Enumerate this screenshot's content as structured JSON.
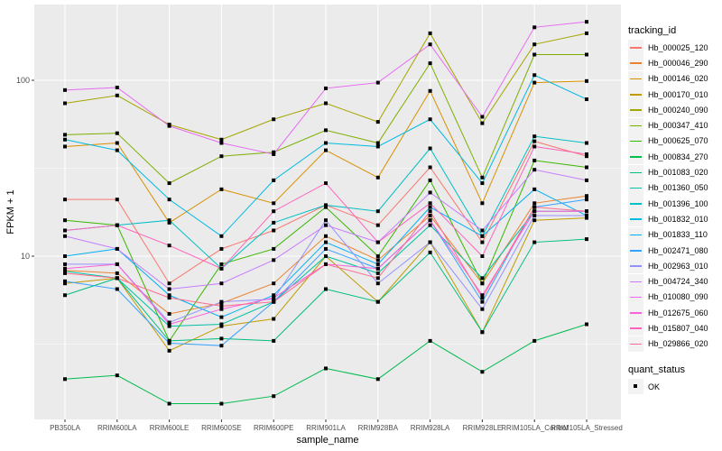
{
  "chart_data": {
    "type": "line",
    "xlabel": "sample_name",
    "ylabel": "FPKM + 1",
    "y_scale": "log10",
    "ylim": [
      1.18,
      270
    ],
    "y_ticks": [
      "10",
      "100"
    ],
    "y_tick_values": [
      10,
      100
    ],
    "grid": true,
    "legend_position": "right",
    "categories": [
      "PB350LA",
      "RRIM600LA",
      "RRIM600LE",
      "RRIM600SE",
      "RRIM600PE",
      "RRIM901LA",
      "RRIM928BA",
      "RRIM928LA",
      "RRIM928LE",
      "RRIM105LA_Control",
      "RRIM105LA_Stressed"
    ],
    "legend_title": "tracking_id",
    "series": [
      {
        "name": "Hb_000025_120",
        "color": "#F8766D",
        "values": [
          21,
          21,
          7,
          11,
          14,
          19.5,
          15,
          32,
          12,
          45,
          37
        ]
      },
      {
        "name": "Hb_000046_290",
        "color": "#EA8331",
        "values": [
          8.3,
          8,
          4.7,
          5.4,
          7,
          13,
          9.5,
          17,
          7,
          20,
          22
        ]
      },
      {
        "name": "Hb_000146_020",
        "color": "#D89000",
        "values": [
          42,
          44,
          15.5,
          24,
          20,
          40,
          28,
          87,
          20,
          97,
          99
        ]
      },
      {
        "name": "Hb_000170_010",
        "color": "#C09B00",
        "values": [
          7,
          7.5,
          2.9,
          4,
          4.4,
          10,
          5.5,
          12,
          3.7,
          16,
          16.5
        ]
      },
      {
        "name": "Hb_000240_090",
        "color": "#A3A500",
        "values": [
          74,
          82,
          56,
          46,
          60,
          74,
          58,
          185,
          57,
          160,
          185
        ]
      },
      {
        "name": "Hb_000347_410",
        "color": "#7CAE00",
        "values": [
          49,
          50,
          26,
          37,
          39,
          52,
          44,
          125,
          28,
          140,
          140
        ]
      },
      {
        "name": "Hb_000625_070",
        "color": "#39B600",
        "values": [
          16,
          15,
          3.3,
          9,
          11,
          19,
          10,
          27,
          7,
          35,
          32
        ]
      },
      {
        "name": "Hb_000834_270",
        "color": "#00BB4E",
        "values": [
          2.0,
          2.1,
          1.45,
          1.45,
          1.6,
          2.3,
          2.0,
          3.3,
          2.2,
          3.3,
          4.1
        ]
      },
      {
        "name": "Hb_001083_020",
        "color": "#00BF7D",
        "values": [
          6,
          7.5,
          3.3,
          3.4,
          3.3,
          6.5,
          5.5,
          10.5,
          3.7,
          12,
          12.5
        ]
      },
      {
        "name": "Hb_001360_050",
        "color": "#00C1A3",
        "values": [
          8.2,
          7.5,
          4,
          4.1,
          5.5,
          10,
          8,
          15,
          7.5,
          18,
          18
        ]
      },
      {
        "name": "Hb_001396_100",
        "color": "#00BFC4",
        "values": [
          14,
          15,
          16,
          8.5,
          15.5,
          19.5,
          18,
          41,
          13,
          48,
          44
        ]
      },
      {
        "name": "Hb_001832_010",
        "color": "#00BAE0",
        "values": [
          46,
          40,
          21,
          13,
          27,
          44,
          42,
          60,
          26,
          107,
          78
        ]
      },
      {
        "name": "Hb_001833_110",
        "color": "#00B0F6",
        "values": [
          10,
          11,
          6,
          4.5,
          6,
          12,
          9,
          19,
          13,
          24,
          17
        ]
      },
      {
        "name": "Hb_002471_080",
        "color": "#35A2FF",
        "values": [
          7.2,
          6.5,
          3.2,
          3.1,
          5.5,
          11,
          8.5,
          16,
          5.5,
          19,
          21
        ]
      },
      {
        "name": "Hb_002963_010",
        "color": "#9590FF",
        "values": [
          9,
          9,
          4.2,
          5.5,
          5.7,
          16,
          7,
          12,
          5,
          17,
          17
        ]
      },
      {
        "name": "Hb_004724_340",
        "color": "#C77CFF",
        "values": [
          13,
          11,
          6.5,
          7,
          9.5,
          15,
          12,
          23,
          14,
          31,
          27
        ]
      },
      {
        "name": "Hb_010080_090",
        "color": "#E76BF3",
        "values": [
          88,
          91,
          55,
          44,
          38,
          90,
          97,
          160,
          62,
          200,
          215
        ]
      },
      {
        "name": "Hb_012675_060",
        "color": "#FA62DB",
        "values": [
          8.5,
          9,
          4.1,
          5,
          5.8,
          9,
          8.5,
          16,
          6,
          18,
          18
        ]
      },
      {
        "name": "Hb_015807_040",
        "color": "#FF62BC",
        "values": [
          14,
          15,
          11.5,
          8.5,
          18,
          26,
          12,
          20,
          10,
          42,
          38
        ]
      },
      {
        "name": "Hb_029866_020",
        "color": "#FF6C91",
        "values": [
          8,
          7.5,
          5.8,
          5.2,
          5.5,
          9,
          7.5,
          18,
          5.8,
          19,
          18
        ]
      }
    ],
    "quant_status": {
      "title": "quant_status",
      "label": "OK"
    }
  }
}
